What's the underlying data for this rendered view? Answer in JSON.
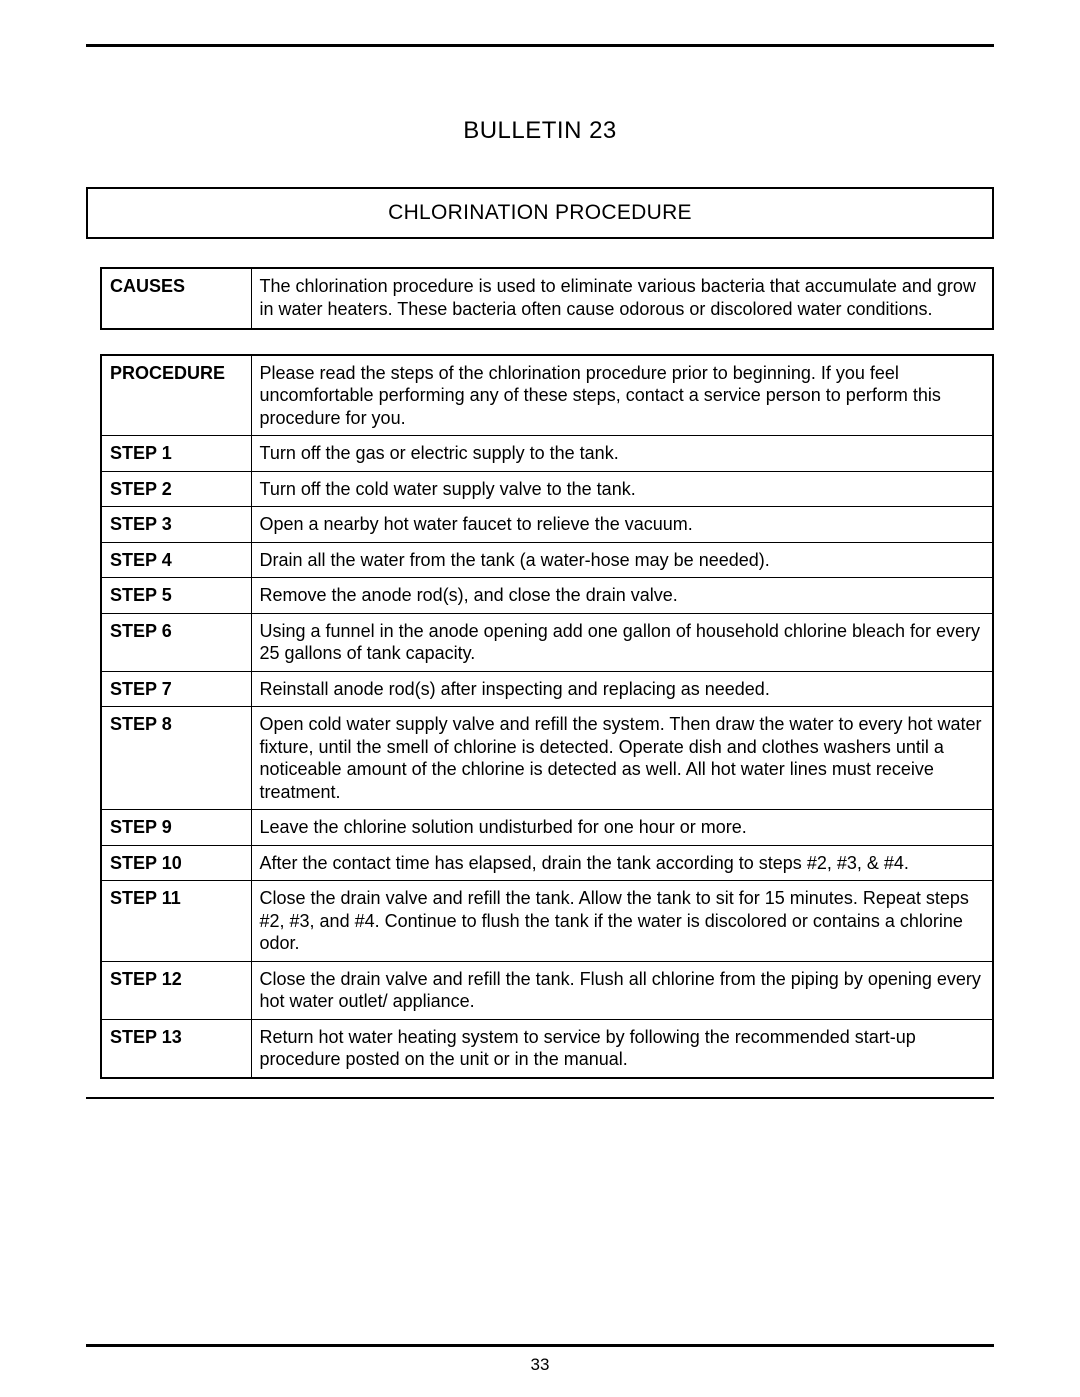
{
  "bulletin_title": "BULLETIN 23",
  "section_title": "CHLORINATION PROCEDURE",
  "causes": {
    "label": "CAUSES",
    "text": "The chlorination procedure is used to eliminate various bacteria that accumulate and grow in water heaters. These bacteria often cause odorous or discolored water conditions."
  },
  "procedure": {
    "label": "PROCEDURE",
    "intro": "Please read the steps of the chlorination procedure prior to beginning. If you feel uncomfortable performing any of these steps, contact a service person to perform this procedure for you.",
    "steps": [
      {
        "label": "STEP 1",
        "text": "Turn off the gas or electric supply to the tank."
      },
      {
        "label": "STEP 2",
        "text": "Turn off the cold water supply valve to the tank."
      },
      {
        "label": "STEP 3",
        "text": "Open a nearby hot water faucet to relieve the vacuum."
      },
      {
        "label": "STEP 4",
        "text": "Drain all the water from the tank (a water-hose may be needed)."
      },
      {
        "label": "STEP 5",
        "text": "Remove the anode rod(s), and close the drain valve."
      },
      {
        "label": "STEP 6",
        "text": "Using a funnel in the anode opening add one gallon of household chlorine bleach for every 25 gallons of tank capacity."
      },
      {
        "label": "STEP 7",
        "text": "Reinstall anode rod(s) after inspecting and replacing as needed."
      },
      {
        "label": "STEP 8",
        "text": "Open cold water supply valve and refill the system. Then draw the water to every hot water fixture, until the smell of chlorine is detected. Operate dish and clothes washers until a noticeable amount of the chlorine is detected as well. All hot water lines must receive treatment."
      },
      {
        "label": "STEP 9",
        "text": "Leave the chlorine solution undisturbed for one hour or more."
      },
      {
        "label": "STEP 10",
        "text": "After the contact time has elapsed, drain the tank according to steps #2, #3, & #4."
      },
      {
        "label": "STEP 11",
        "text": "Close the drain valve and refill the tank. Allow the tank to sit for 15 minutes. Repeat steps #2, #3, and #4. Continue to flush the tank if the water is discolored or contains a chlorine odor."
      },
      {
        "label": "STEP 12",
        "text": "Close the drain valve and refill the tank. Flush all chlorine from the piping by opening every hot water outlet/ appliance."
      },
      {
        "label": "STEP 13",
        "text": "Return hot water heating system to service by following the recommended start-up procedure posted on the unit or in the manual."
      }
    ]
  },
  "page_number": "33"
}
